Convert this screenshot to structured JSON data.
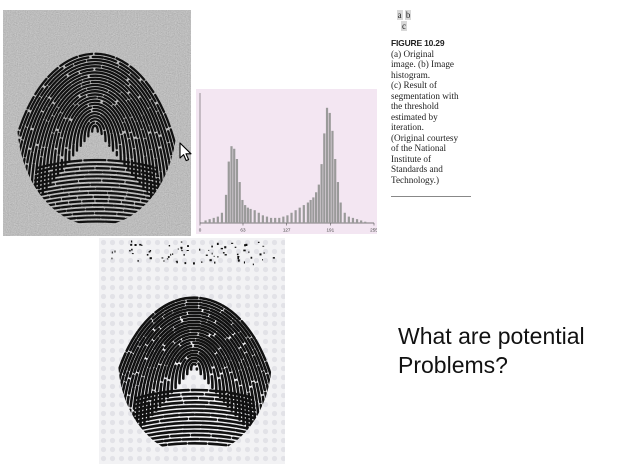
{
  "figure": {
    "panel_labels": [
      "a",
      "b",
      "c"
    ],
    "number": "FIGURE 10.29",
    "caption_lines": [
      "(a) Original",
      "image. (b) Image",
      "histogram.",
      "(c) Result of",
      "segmentation with",
      "the threshold",
      "estimated by",
      "iteration.",
      "(Original courtesy",
      "of the National",
      "Institute of",
      "Standards and",
      "Technology.)"
    ]
  },
  "question": {
    "lines": [
      "What are potential",
      "Problems?"
    ]
  },
  "chart_data": {
    "type": "bar",
    "title": "",
    "xlabel": "",
    "ylabel": "",
    "tick_labels": [
      "0",
      "63",
      "127",
      "191",
      "255"
    ],
    "xlim": [
      0,
      255
    ],
    "ylim": [
      0,
      1
    ],
    "x": [
      8,
      14,
      20,
      26,
      32,
      38,
      42,
      46,
      50,
      54,
      58,
      62,
      66,
      70,
      74,
      80,
      86,
      92,
      98,
      104,
      110,
      116,
      122,
      128,
      134,
      140,
      146,
      152,
      158,
      162,
      166,
      170,
      174,
      178,
      182,
      186,
      190,
      194,
      198,
      202,
      206,
      212,
      218,
      224,
      230,
      236,
      242
    ],
    "values": [
      0.02,
      0.03,
      0.04,
      0.05,
      0.08,
      0.22,
      0.48,
      0.6,
      0.58,
      0.5,
      0.32,
      0.18,
      0.14,
      0.12,
      0.11,
      0.1,
      0.08,
      0.06,
      0.05,
      0.04,
      0.04,
      0.04,
      0.05,
      0.06,
      0.08,
      0.1,
      0.12,
      0.14,
      0.16,
      0.18,
      0.2,
      0.24,
      0.3,
      0.46,
      0.7,
      0.9,
      0.86,
      0.72,
      0.5,
      0.32,
      0.16,
      0.08,
      0.05,
      0.04,
      0.03,
      0.02,
      0.01
    ]
  },
  "colors": {
    "fingerprint_ridge": "#111111",
    "original_background": "#a9a9a9",
    "histogram_background": "#f3e6f2",
    "histogram_bar": "#9a9a9a",
    "result_background": "#f2f2f4"
  },
  "icons": {
    "cursor": "mouse-pointer-icon"
  }
}
